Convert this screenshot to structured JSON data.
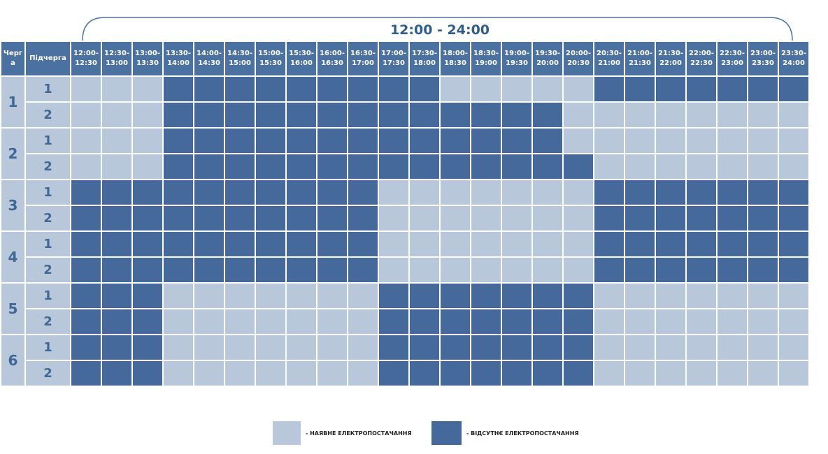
{
  "title": "12:00 - 24:00",
  "table": {
    "header": {
      "queue": "Черга",
      "subqueue": "Підчерга",
      "slots": [
        [
          "12:00-",
          "12:30"
        ],
        [
          "12:30-",
          "13:00"
        ],
        [
          "13:00-",
          "13:30"
        ],
        [
          "13:30-",
          "14:00"
        ],
        [
          "14:00-",
          "14:30"
        ],
        [
          "14:30-",
          "15:00"
        ],
        [
          "15:00-",
          "15:30"
        ],
        [
          "15:30-",
          "16:00"
        ],
        [
          "16:00-",
          "16:30"
        ],
        [
          "16:30-",
          "17:00"
        ],
        [
          "17:00-",
          "17:30"
        ],
        [
          "17:30-",
          "18:00"
        ],
        [
          "18:00-",
          "18:30"
        ],
        [
          "18:30-",
          "19:00"
        ],
        [
          "19:00-",
          "19:30"
        ],
        [
          "19:30-",
          "20:00"
        ],
        [
          "20:00-",
          "20:30"
        ],
        [
          "20:30-",
          "21:00"
        ],
        [
          "21:00-",
          "21:30"
        ],
        [
          "21:30-",
          "22:00"
        ],
        [
          "22:00-",
          "22:30"
        ],
        [
          "22:30-",
          "23:00"
        ],
        [
          "23:00-",
          "23:30"
        ],
        [
          "23:30-",
          "24:00"
        ]
      ]
    },
    "groups": [
      {
        "queue": "1",
        "rows": [
          {
            "subqueue": "1",
            "cells": [
              0,
              0,
              0,
              1,
              1,
              1,
              1,
              1,
              1,
              1,
              1,
              1,
              0,
              0,
              0,
              0,
              0,
              1,
              1,
              1,
              1,
              1,
              1,
              1
            ]
          },
          {
            "subqueue": "2",
            "cells": [
              0,
              0,
              0,
              1,
              1,
              1,
              1,
              1,
              1,
              1,
              1,
              1,
              1,
              1,
              1,
              1,
              0,
              0,
              0,
              0,
              0,
              0,
              0,
              0
            ]
          }
        ]
      },
      {
        "queue": "2",
        "rows": [
          {
            "subqueue": "1",
            "cells": [
              0,
              0,
              0,
              1,
              1,
              1,
              1,
              1,
              1,
              1,
              1,
              1,
              1,
              1,
              1,
              1,
              0,
              0,
              0,
              0,
              0,
              0,
              0,
              0
            ]
          },
          {
            "subqueue": "2",
            "cells": [
              0,
              0,
              0,
              1,
              1,
              1,
              1,
              1,
              1,
              1,
              1,
              1,
              1,
              1,
              1,
              1,
              1,
              0,
              0,
              0,
              0,
              0,
              0,
              0
            ]
          }
        ]
      },
      {
        "queue": "3",
        "rows": [
          {
            "subqueue": "1",
            "cells": [
              1,
              1,
              1,
              1,
              1,
              1,
              1,
              1,
              1,
              1,
              0,
              0,
              0,
              0,
              0,
              0,
              0,
              1,
              1,
              1,
              1,
              1,
              1,
              1
            ]
          },
          {
            "subqueue": "2",
            "cells": [
              1,
              1,
              1,
              1,
              1,
              1,
              1,
              1,
              1,
              1,
              0,
              0,
              0,
              0,
              0,
              0,
              0,
              1,
              1,
              1,
              1,
              1,
              1,
              1
            ]
          }
        ]
      },
      {
        "queue": "4",
        "rows": [
          {
            "subqueue": "1",
            "cells": [
              1,
              1,
              1,
              1,
              1,
              1,
              1,
              1,
              1,
              1,
              0,
              0,
              0,
              0,
              0,
              0,
              0,
              1,
              1,
              1,
              1,
              1,
              1,
              1
            ]
          },
          {
            "subqueue": "2",
            "cells": [
              1,
              1,
              1,
              1,
              1,
              1,
              1,
              1,
              1,
              1,
              0,
              0,
              0,
              0,
              0,
              0,
              0,
              1,
              1,
              1,
              1,
              1,
              1,
              1
            ]
          }
        ]
      },
      {
        "queue": "5",
        "rows": [
          {
            "subqueue": "1",
            "cells": [
              1,
              1,
              1,
              0,
              0,
              0,
              0,
              0,
              0,
              0,
              1,
              1,
              1,
              1,
              1,
              1,
              1,
              0,
              0,
              0,
              0,
              0,
              0,
              0
            ]
          },
          {
            "subqueue": "2",
            "cells": [
              1,
              1,
              1,
              0,
              0,
              0,
              0,
              0,
              0,
              0,
              1,
              1,
              1,
              1,
              1,
              1,
              1,
              0,
              0,
              0,
              0,
              0,
              0,
              0
            ]
          }
        ]
      },
      {
        "queue": "6",
        "rows": [
          {
            "subqueue": "1",
            "cells": [
              1,
              1,
              1,
              0,
              0,
              0,
              0,
              0,
              0,
              0,
              1,
              1,
              1,
              1,
              1,
              1,
              1,
              0,
              0,
              0,
              0,
              0,
              0,
              0
            ]
          },
          {
            "subqueue": "2",
            "cells": [
              1,
              1,
              1,
              0,
              0,
              0,
              0,
              0,
              0,
              0,
              1,
              1,
              1,
              1,
              1,
              1,
              1,
              0,
              0,
              0,
              0,
              0,
              0,
              0
            ]
          }
        ]
      }
    ]
  },
  "legend": [
    {
      "label": "- НАЯВНЕ ЕЛЕКТРОПОСТАЧАННЯ",
      "color": "#b8c7d9"
    },
    {
      "label": "- ВІДСУТНЄ ЕЛЕКТРОПОСТАЧАННЯ",
      "color": "#45699a"
    }
  ]
}
